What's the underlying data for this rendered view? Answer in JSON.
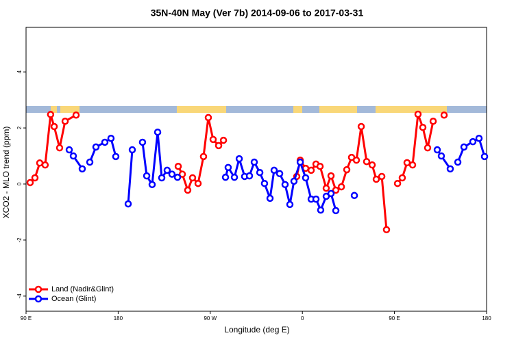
{
  "chart_data": {
    "type": "line",
    "title": "35N-40N May (Ver 7b)   2014-09-06 to 2017-03-31",
    "xlabel": "Longitude (deg E)",
    "ylabel": "XCO2 - MLO trend (ppm)",
    "xlim": [
      90,
      540
    ],
    "ylim": [
      -4.54,
      5.59
    ],
    "xticks": [
      {
        "value": 90,
        "label": "90 E"
      },
      180,
      {
        "value": 270,
        "label": "90 W"
      },
      {
        "value": 360,
        "label": "0"
      },
      {
        "value": 450,
        "label": "90 E"
      },
      180
    ],
    "yticks": [
      -4,
      -2,
      0,
      2,
      4
    ],
    "legend": "bottom-left",
    "series": [
      {
        "name": "Land (Nadir&Glint)",
        "color": "#ff0000",
        "x": [
          94,
          98.7,
          103.4,
          108.7,
          114,
          117.5,
          122.8,
          128.2,
          138.9,
          null,
          238.7,
          242.7,
          248.0,
          252.7,
          258.1,
          263.4,
          268.1,
          272.8,
          278.2,
          282.9,
          null,
          354.5,
          357.9,
          363.2,
          368.6,
          373.3,
          377.3,
          383.3,
          388.0,
          392.7,
          398.1,
          403.4,
          408.1,
          412.8,
          417.5,
          422.8,
          428.2,
          432.2,
          437.6,
          442.2,
          null,
          453.0,
          457.6,
          462.3,
          467.7,
          473.0,
          477.7,
          482.4,
          487.8,
          null,
          498.5
        ],
        "values": [
          0.05,
          0.22,
          0.75,
          0.68,
          2.48,
          2.05,
          1.29,
          2.24,
          2.46,
          null,
          0.63,
          0.35,
          -0.22,
          0.22,
          0.02,
          0.98,
          2.37,
          1.59,
          1.37,
          1.56,
          null,
          0.27,
          0.85,
          0.56,
          0.49,
          0.71,
          0.63,
          -0.15,
          0.29,
          -0.22,
          -0.1,
          0.51,
          0.95,
          0.85,
          2.05,
          0.8,
          0.68,
          0.17,
          0.27,
          -1.63,
          null,
          0.02,
          0.22,
          0.76,
          0.68,
          2.49,
          2.02,
          1.29,
          2.24,
          null,
          2.46
        ]
      },
      {
        "name": "Ocean (Glint)",
        "color": "#0000ff",
        "x": [
          132.2,
          136.2,
          144.9,
          null,
          152.3,
          158.3,
          167.0,
          173.0,
          177.7,
          null,
          189.8,
          193.8,
          null,
          203.8,
          207.9,
          213.2,
          218.6,
          222.6,
          227.9,
          232.6,
          238.0,
          null,
          284.9,
          287.5,
          293.6,
          298.3,
          303.6,
          308.3,
          313.0,
          318.4,
          323.0,
          328.4,
          332.4,
          337.8,
          343.1,
          347.8,
          351.8,
          357.9,
          363.2,
          368.6,
          373.3,
          377.9,
          383.3,
          388.0,
          392.7,
          null,
          410.8,
          null,
          491.8,
          495.8,
          504.5,
          null,
          511.9,
          517.9,
          526.6,
          532.6,
          538.0
        ],
        "values": [
          1.22,
          1.0,
          0.54,
          null,
          0.78,
          1.32,
          1.49,
          1.63,
          0.98,
          null,
          -0.71,
          1.22,
          null,
          1.49,
          0.29,
          -0.02,
          1.85,
          0.22,
          0.49,
          0.35,
          0.24,
          null,
          0.24,
          0.59,
          0.24,
          0.9,
          0.27,
          0.29,
          0.78,
          0.41,
          0.02,
          -0.51,
          0.49,
          0.37,
          -0.02,
          -0.73,
          0.1,
          0.78,
          0.22,
          -0.54,
          -0.54,
          -0.93,
          -0.44,
          -0.34,
          -0.95,
          null,
          -0.41,
          null,
          1.22,
          1.0,
          0.54,
          null,
          0.78,
          1.32,
          1.51,
          1.63,
          0.98
        ]
      }
    ]
  }
}
